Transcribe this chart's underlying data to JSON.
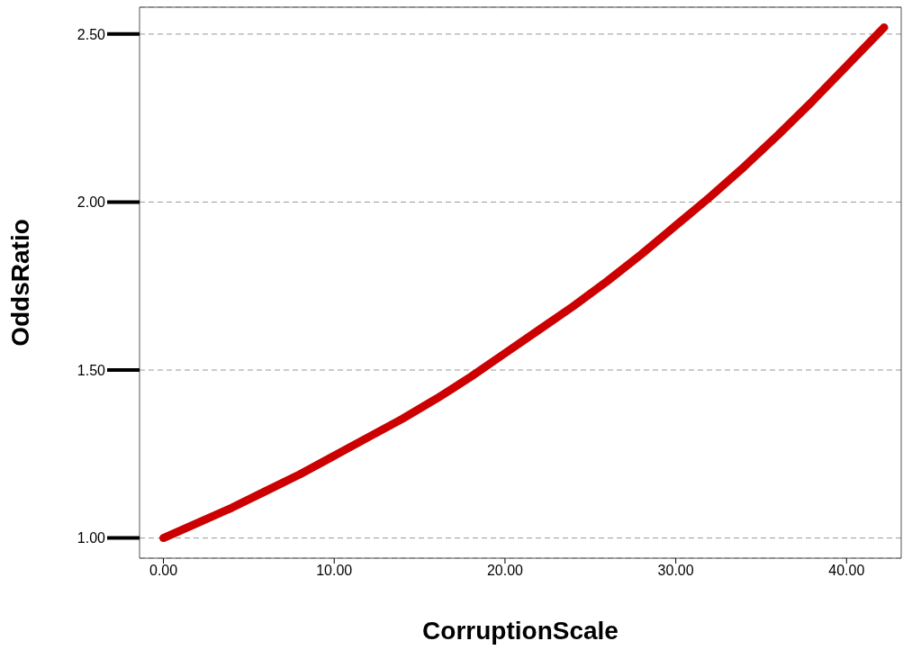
{
  "chart_data": {
    "type": "line",
    "xlabel": "CorruptionScale",
    "ylabel": "OddsRatio",
    "xlim": [
      -1.4,
      43.2
    ],
    "ylim": [
      0.94,
      2.58
    ],
    "xticks": [
      {
        "value": 0,
        "label": "0.00"
      },
      {
        "value": 10,
        "label": "10.00"
      },
      {
        "value": 20,
        "label": "20.00"
      },
      {
        "value": 30,
        "label": "30.00"
      },
      {
        "value": 40,
        "label": "40.00"
      }
    ],
    "yticks": [
      {
        "value": 1,
        "label": "1.00"
      },
      {
        "value": 1.5,
        "label": "1.50"
      },
      {
        "value": 2,
        "label": "2.00"
      },
      {
        "value": 2.5,
        "label": "2.50"
      }
    ],
    "grid": "y",
    "legend": false,
    "marker": "none",
    "line_style": "solid",
    "series": [
      {
        "color": "#cc0000",
        "x": [
          0,
          2,
          4,
          6,
          8,
          10,
          12,
          14,
          16,
          18,
          20,
          22,
          24,
          26,
          28,
          30,
          32,
          34,
          36,
          38,
          40,
          42.2
        ],
        "values": [
          1.0,
          1.045,
          1.09,
          1.14,
          1.19,
          1.245,
          1.3,
          1.355,
          1.415,
          1.48,
          1.55,
          1.62,
          1.69,
          1.765,
          1.845,
          1.93,
          2.015,
          2.105,
          2.2,
          2.3,
          2.405,
          2.52
        ]
      }
    ]
  }
}
